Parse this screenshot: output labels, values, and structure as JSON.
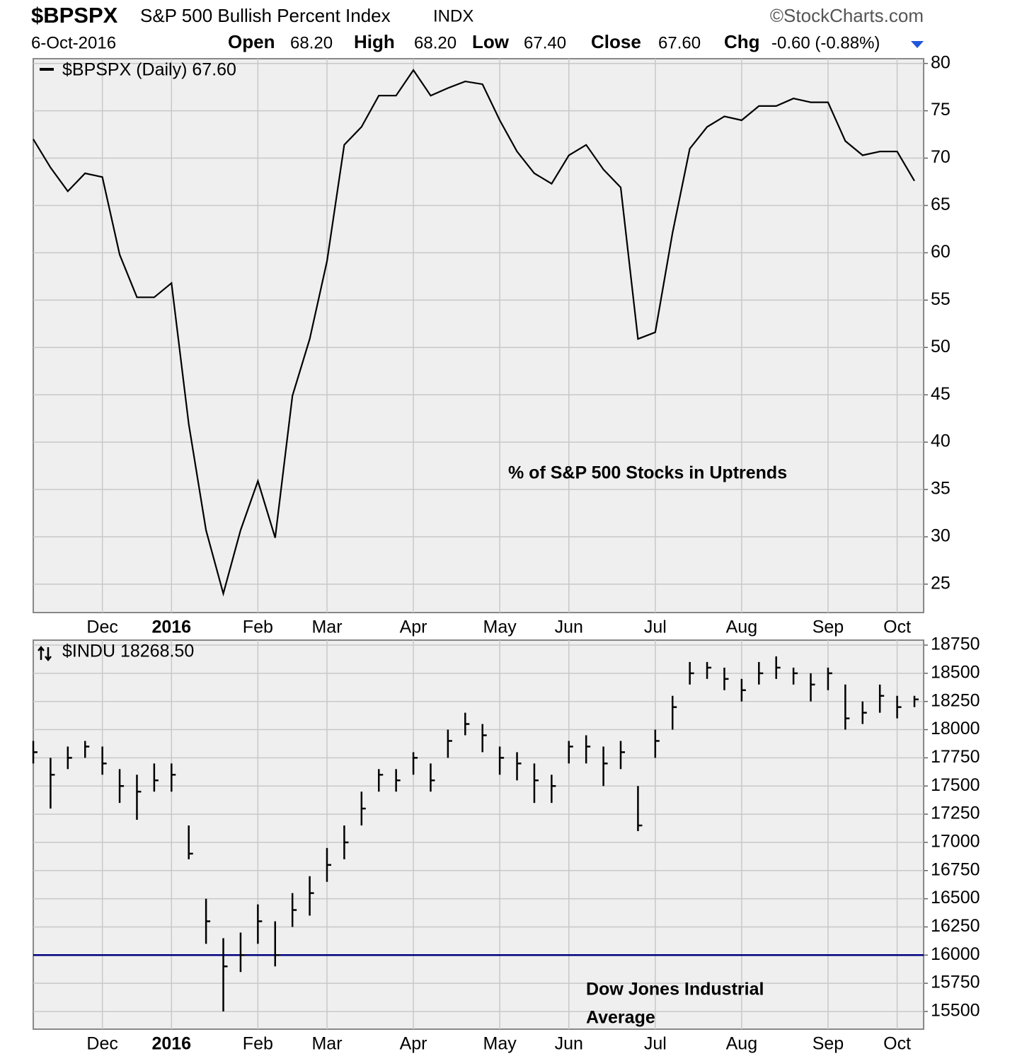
{
  "header": {
    "ticker": "$BPSPX",
    "name": "S&P 500 Bullish Percent Index",
    "exchange": "INDX",
    "source": "©StockCharts.com",
    "date": "6-Oct-2016",
    "stats": [
      {
        "label": "Open",
        "value": "68.20"
      },
      {
        "label": "High",
        "value": "68.20"
      },
      {
        "label": "Low",
        "value": "67.40"
      },
      {
        "label": "Close",
        "value": "67.60"
      },
      {
        "label": "Chg",
        "value": "-0.60 (-0.88%)"
      }
    ]
  },
  "chart_data": [
    {
      "type": "line",
      "categories": [
        null,
        null,
        null,
        null,
        "Dec",
        null,
        null,
        null,
        "2016",
        null,
        null,
        null,
        null,
        "Feb",
        null,
        null,
        null,
        "Mar",
        null,
        null,
        null,
        null,
        "Apr",
        null,
        null,
        null,
        null,
        "May",
        null,
        null,
        null,
        "Jun",
        null,
        null,
        null,
        null,
        "Jul",
        null,
        null,
        null,
        null,
        "Aug",
        null,
        null,
        null,
        null,
        "Sep",
        null,
        null,
        null,
        "Oct",
        null
      ],
      "series": [
        {
          "name": "$BPSPX (Daily) 67.60",
          "color": "#000000",
          "values": [
            72,
            69,
            66.5,
            68.4,
            68,
            59.8,
            55.3,
            55.3,
            56.8,
            41.9,
            30.7,
            24,
            30.7,
            35.9,
            29.9,
            44.9,
            50.9,
            59.1,
            71.4,
            73.3,
            76.6,
            76.6,
            79.3,
            76.6,
            77.4,
            78.1,
            77.8,
            74,
            70.7,
            68.4,
            67.3,
            70.3,
            71.4,
            68.8,
            66.9,
            50.9,
            51.6,
            62.1,
            71,
            73.3,
            74.4,
            74,
            75.5,
            75.5,
            76.3,
            75.9,
            75.9,
            71.8,
            70.3,
            70.7,
            70.7,
            67.6
          ]
        }
      ],
      "ylim": [
        22,
        80.5
      ],
      "yticks": [
        25,
        30,
        35,
        40,
        45,
        50,
        55,
        60,
        65,
        70,
        75,
        80
      ],
      "grid": true,
      "annotation": [
        "% of S&P 500 Stocks in Uptrends"
      ],
      "annotation_color": "#0000ee"
    },
    {
      "type": "ohlc",
      "categories": [
        null,
        null,
        null,
        null,
        "Dec",
        null,
        null,
        null,
        "2016",
        null,
        null,
        null,
        null,
        "Feb",
        null,
        null,
        null,
        "Mar",
        null,
        null,
        null,
        null,
        "Apr",
        null,
        null,
        null,
        null,
        "May",
        null,
        null,
        null,
        "Jun",
        null,
        null,
        null,
        null,
        "Jul",
        null,
        null,
        null,
        null,
        "Aug",
        null,
        null,
        null,
        null,
        "Sep",
        null,
        null,
        null,
        "Oct",
        null
      ],
      "series": [
        {
          "name": "$INDU 18268.50",
          "color": "#000000",
          "high": [
            17900,
            17750,
            17850,
            17900,
            17850,
            17650,
            17600,
            17700,
            17700,
            17150,
            16500,
            16150,
            16200,
            16450,
            16300,
            16550,
            16700,
            16950,
            17150,
            17450,
            17650,
            17650,
            17800,
            17700,
            18000,
            18150,
            18050,
            17850,
            17800,
            17700,
            17600,
            17900,
            17950,
            17850,
            17900,
            17500,
            18000,
            18300,
            18600,
            18600,
            18550,
            18450,
            18600,
            18650,
            18550,
            18500,
            18550,
            18400,
            18250,
            18400,
            18300,
            18300
          ],
          "low": [
            17700,
            17300,
            17650,
            17750,
            17600,
            17350,
            17200,
            17450,
            17450,
            16850,
            16100,
            15500,
            15850,
            16100,
            15900,
            16250,
            16350,
            16650,
            16850,
            17150,
            17450,
            17450,
            17600,
            17450,
            17750,
            17950,
            17800,
            17600,
            17550,
            17350,
            17350,
            17700,
            17700,
            17500,
            17650,
            17100,
            17750,
            18000,
            18400,
            18450,
            18350,
            18250,
            18400,
            18450,
            18400,
            18250,
            18350,
            18000,
            18050,
            18150,
            18100,
            18200
          ],
          "close": [
            17800,
            17600,
            17750,
            17850,
            17700,
            17500,
            17450,
            17550,
            17600,
            16900,
            16300,
            15900,
            16000,
            16300,
            16000,
            16400,
            16550,
            16800,
            17000,
            17300,
            17600,
            17550,
            17750,
            17550,
            17900,
            18050,
            17950,
            17750,
            17700,
            17550,
            17500,
            17850,
            17850,
            17700,
            17800,
            17150,
            17900,
            18200,
            18500,
            18550,
            18450,
            18350,
            18500,
            18550,
            18500,
            18400,
            18500,
            18100,
            18150,
            18300,
            18200,
            18268.5
          ]
        }
      ],
      "ylim": [
        15343,
        18794
      ],
      "yticks": [
        15500,
        15750,
        16000,
        16250,
        16500,
        16750,
        17000,
        17250,
        17500,
        17750,
        18000,
        18250,
        18500,
        18750
      ],
      "grid": true,
      "hlines": [
        {
          "value": 16000,
          "color": "#000080"
        }
      ],
      "annotation": [
        "Dow Jones Industrial",
        "Average"
      ],
      "annotation_color": "#0000ee"
    }
  ]
}
